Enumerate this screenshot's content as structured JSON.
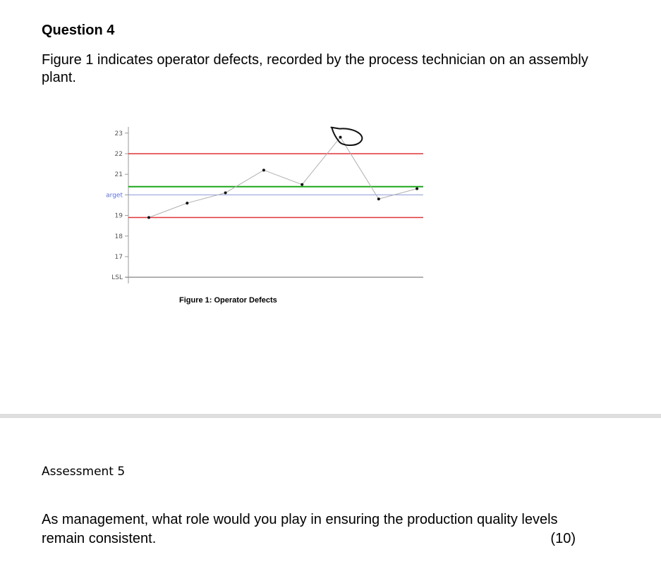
{
  "question": {
    "title": "Question 4",
    "intro": "Figure 1 indicates operator defects, recorded by the process technician on an assembly plant."
  },
  "figure": {
    "caption": "Figure 1: Operator Defects"
  },
  "chart_data": {
    "type": "line",
    "title": "",
    "xlabel": "",
    "ylabel": "",
    "y_tick_labels": [
      "23",
      "22",
      "21",
      "arget",
      "19",
      "18",
      "17",
      "LSL"
    ],
    "y_ticks": [
      23,
      22,
      21,
      20,
      19,
      18,
      17,
      16
    ],
    "ylim": [
      15.7,
      23.3
    ],
    "x": [
      1,
      2,
      3,
      4,
      5,
      6,
      7,
      8
    ],
    "values": [
      18.9,
      19.6,
      20.1,
      21.2,
      20.5,
      22.8,
      19.8,
      20.3
    ],
    "reference_lines": [
      {
        "value": 22,
        "color": "#e0343a"
      },
      {
        "value": 20.4,
        "color": "#1aa81a"
      },
      {
        "value": 20,
        "color": "#8b9bd8"
      },
      {
        "value": 18.9,
        "color": "#e0343a"
      }
    ],
    "line_color": "#b0b0b0",
    "point_color": "#111111",
    "annotation": "hand-drawn circle around point 6",
    "grid": false
  },
  "assessment": {
    "label": "Assessment 5",
    "question_line1": "As management, what role would you play in ensuring the production quality levels",
    "question_line2": "remain consistent.",
    "marks": "(10)"
  }
}
